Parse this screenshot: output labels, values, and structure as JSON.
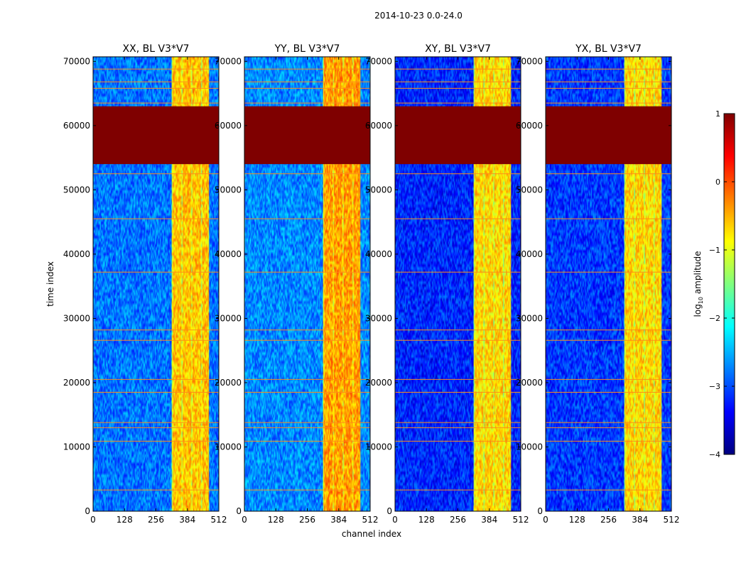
{
  "figure": {
    "suptitle": "2014-10-23 0.0-24.0",
    "colorbar_label": "log",
    "colorbar_label_sub": "10",
    "colorbar_label_tail": " amplitude",
    "colormap": [
      "#00007f",
      "#0000ff",
      "#007fff",
      "#00ffff",
      "#7fff7f",
      "#ffff00",
      "#ff7f00",
      "#ff0000",
      "#7f0000"
    ]
  },
  "chart_data": [
    {
      "type": "heatmap",
      "title": "XX, BL V3*V7",
      "xlabel": "",
      "ylabel": "time index",
      "xlim": [
        0,
        512
      ],
      "ylim": [
        0,
        70700
      ],
      "xticks": [
        0,
        128,
        256,
        384,
        512
      ],
      "yticks": [
        0,
        10000,
        20000,
        30000,
        40000,
        50000,
        60000,
        70000
      ],
      "value_label": "log10 amplitude",
      "clim": [
        -4,
        1
      ],
      "background_level": -2.8,
      "saturated_block": {
        "t_start": 54000,
        "t_end": 63000,
        "value": 1
      },
      "bright_band": {
        "channel_start": 320,
        "channel_end": 470,
        "level": -0.6
      },
      "flagged_rows": [
        3300,
        10900,
        13000,
        13800,
        18500,
        20500,
        26600,
        28200,
        37200,
        45500,
        52500,
        63500,
        65800,
        66800,
        68800
      ]
    },
    {
      "type": "heatmap",
      "title": "YY, BL V3*V7",
      "xlabel": "channel index",
      "ylabel": "",
      "xlim": [
        0,
        512
      ],
      "ylim": [
        0,
        70700
      ],
      "xticks": [
        0,
        128,
        256,
        384,
        512
      ],
      "yticks": [
        0,
        10000,
        20000,
        30000,
        40000,
        50000,
        60000,
        70000
      ],
      "value_label": "log10 amplitude",
      "clim": [
        -4,
        1
      ],
      "background_level": -2.7,
      "saturated_block": {
        "t_start": 54000,
        "t_end": 63000,
        "value": 1
      },
      "bright_band": {
        "channel_start": 320,
        "channel_end": 470,
        "level": -0.4
      },
      "flagged_rows": [
        3300,
        10900,
        13000,
        13800,
        18500,
        20500,
        26600,
        28200,
        37200,
        45500,
        52500,
        63500,
        65800,
        66800,
        68800
      ]
    },
    {
      "type": "heatmap",
      "title": "XY, BL V3*V7",
      "xlabel": "",
      "ylabel": "",
      "xlim": [
        0,
        512
      ],
      "ylim": [
        0,
        70700
      ],
      "xticks": [
        0,
        128,
        256,
        384,
        512
      ],
      "yticks": [
        0,
        10000,
        20000,
        30000,
        40000,
        50000,
        60000,
        70000
      ],
      "value_label": "log10 amplitude",
      "clim": [
        -4,
        1
      ],
      "background_level": -3.2,
      "saturated_block": {
        "t_start": 54000,
        "t_end": 63000,
        "value": 1
      },
      "bright_band": {
        "channel_start": 320,
        "channel_end": 470,
        "level": -0.7
      },
      "flagged_rows": [
        3300,
        10900,
        13000,
        13800,
        18500,
        20500,
        26600,
        28200,
        37200,
        45500,
        52500,
        63500,
        65800,
        66800,
        68800
      ]
    },
    {
      "type": "heatmap",
      "title": "YX, BL V3*V7",
      "xlabel": "",
      "ylabel": "",
      "xlim": [
        0,
        512
      ],
      "ylim": [
        0,
        70700
      ],
      "xticks": [
        0,
        128,
        256,
        384,
        512
      ],
      "yticks": [
        0,
        10000,
        20000,
        30000,
        40000,
        50000,
        60000,
        70000
      ],
      "value_label": "log10 amplitude",
      "clim": [
        -4,
        1
      ],
      "background_level": -3.1,
      "saturated_block": {
        "t_start": 54000,
        "t_end": 63000,
        "value": 1
      },
      "bright_band": {
        "channel_start": 320,
        "channel_end": 470,
        "level": -0.7
      },
      "flagged_rows": [
        3300,
        10900,
        13000,
        13800,
        18500,
        20500,
        26600,
        28200,
        37200,
        45500,
        52500,
        63500,
        65800,
        66800,
        68800
      ]
    }
  ],
  "colorbar": {
    "ticks": [
      1,
      0,
      -1,
      -2,
      -3,
      -4
    ],
    "tick_labels": [
      "1",
      "0",
      "−1",
      "−2",
      "−3",
      "−4"
    ]
  }
}
